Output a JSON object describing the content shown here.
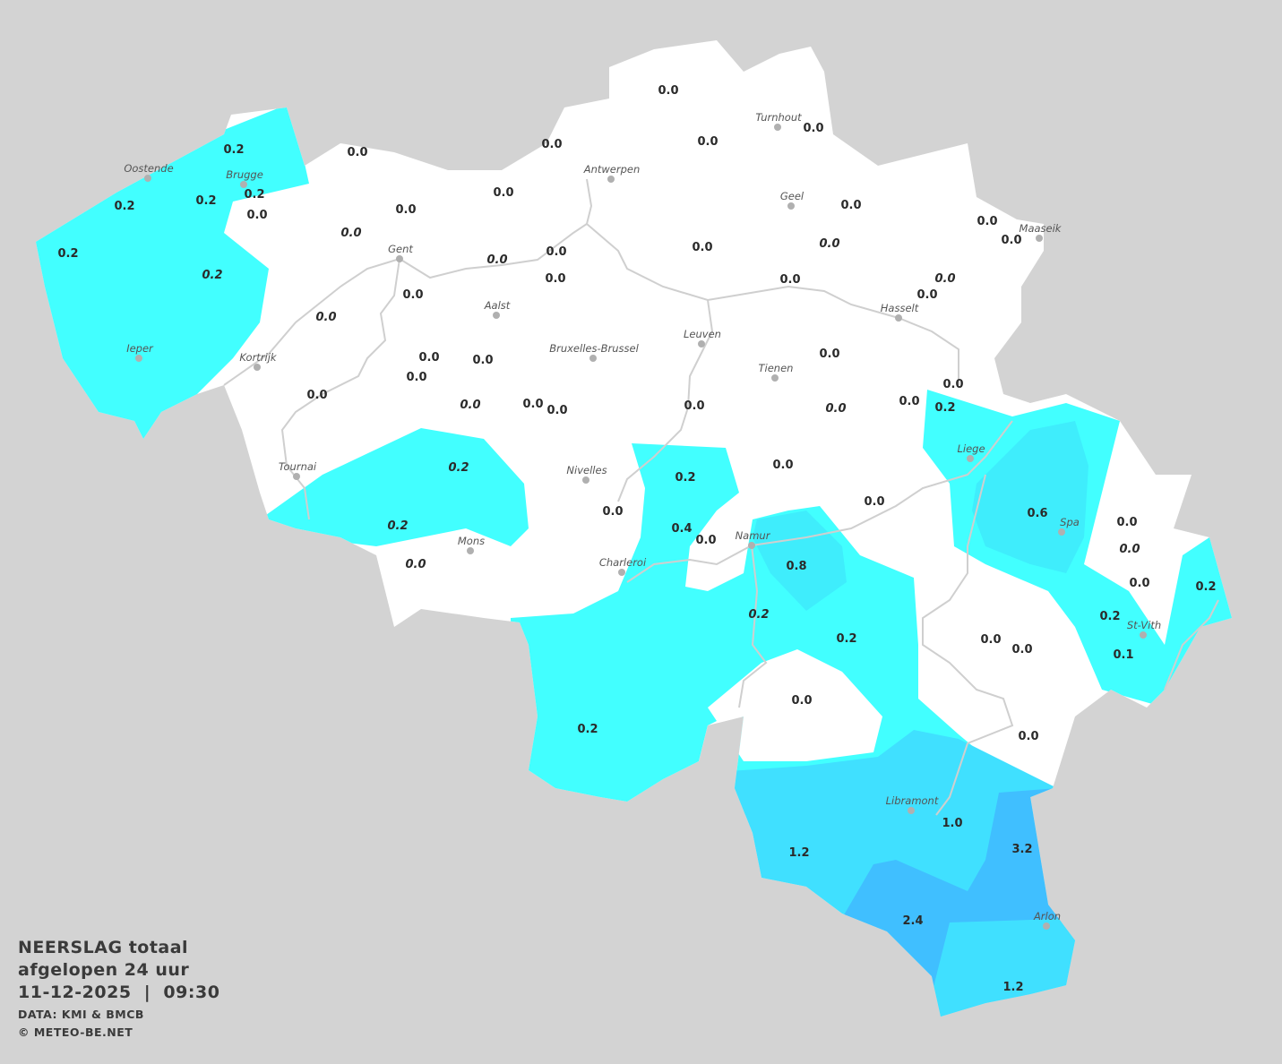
{
  "title": {
    "line1": "NEERSLAG totaal",
    "line2": "afgelopen 24 uur",
    "line3": "11-12-2025  |  09:30",
    "source": "DATA: KMI & BMCB",
    "copyright": "© METEO-BE.NET"
  },
  "colors": {
    "background": "#d3d3d3",
    "land_no_rain": "#ffffff",
    "rain_0_2": "#42ffff",
    "rain_0_6": "#3fedfc",
    "rain_1_0": "#40e0ff",
    "rain_2_4": "#40bfff",
    "river": "#cfcfcf",
    "city_dot": "#b0b0b0"
  },
  "cities": [
    "Oostende",
    "Brugge",
    "Antwerpen",
    "Turnhout",
    "Geel",
    "Maaseik",
    "Gent",
    "Aalst",
    "Bruxelles-Brussel",
    "Leuven",
    "Hasselt",
    "Tienen",
    "Kortrijk",
    "Ieper",
    "Tournai",
    "Nivelles",
    "Mons",
    "Charleroi",
    "Namur",
    "Liege",
    "Spa",
    "St-Vith",
    "Libramont",
    "Arlon"
  ],
  "stations": [
    {
      "v": "0.0",
      "i": false
    },
    {
      "v": "0.0",
      "i": false
    },
    {
      "v": "0.0",
      "i": false
    },
    {
      "v": "0.0",
      "i": false
    },
    {
      "v": "0.0",
      "i": false
    },
    {
      "v": "0.2",
      "i": false
    },
    {
      "v": "0.2",
      "i": false
    },
    {
      "v": "0.2",
      "i": false
    },
    {
      "v": "0.2",
      "i": false
    },
    {
      "v": "0.0",
      "i": false
    },
    {
      "v": "0.0",
      "i": false
    },
    {
      "v": "0.0",
      "i": false
    },
    {
      "v": "0.0",
      "i": true
    },
    {
      "v": "0.2",
      "i": false
    },
    {
      "v": "0.2",
      "i": true
    },
    {
      "v": "0.0",
      "i": true
    },
    {
      "v": "0.0",
      "i": false
    },
    {
      "v": "0.0",
      "i": false
    },
    {
      "v": "0.0",
      "i": false
    },
    {
      "v": "0.0",
      "i": true
    },
    {
      "v": "0.0",
      "i": false
    },
    {
      "v": "0.0",
      "i": false
    },
    {
      "v": "0.0",
      "i": false
    },
    {
      "v": "0.0",
      "i": false
    },
    {
      "v": "0.0",
      "i": true
    },
    {
      "v": "0.0",
      "i": false
    },
    {
      "v": "0.0",
      "i": false
    },
    {
      "v": "0.0",
      "i": false
    },
    {
      "v": "0.0",
      "i": false
    },
    {
      "v": "0.0",
      "i": true
    },
    {
      "v": "0.0",
      "i": false
    },
    {
      "v": "0.0",
      "i": false
    },
    {
      "v": "0.0",
      "i": false
    },
    {
      "v": "0.0",
      "i": true
    },
    {
      "v": "0.0",
      "i": false
    },
    {
      "v": "0.0",
      "i": false
    },
    {
      "v": "0.0",
      "i": false
    },
    {
      "v": "0.0",
      "i": true
    },
    {
      "v": "0.0",
      "i": false
    },
    {
      "v": "0.0",
      "i": false
    },
    {
      "v": "0.2",
      "i": false
    },
    {
      "v": "0.2",
      "i": true
    },
    {
      "v": "0.2",
      "i": false
    },
    {
      "v": "0.0",
      "i": false
    },
    {
      "v": "0.0",
      "i": false
    },
    {
      "v": "0.2",
      "i": true
    },
    {
      "v": "0.0",
      "i": false
    },
    {
      "v": "0.4",
      "i": false
    },
    {
      "v": "0.0",
      "i": false
    },
    {
      "v": "0.6",
      "i": false
    },
    {
      "v": "0.0",
      "i": false
    },
    {
      "v": "0.0",
      "i": true
    },
    {
      "v": "0.0",
      "i": true
    },
    {
      "v": "0.8",
      "i": false
    },
    {
      "v": "0.0",
      "i": false
    },
    {
      "v": "0.2",
      "i": false
    },
    {
      "v": "0.2",
      "i": true
    },
    {
      "v": "0.2",
      "i": false
    },
    {
      "v": "0.2",
      "i": false
    },
    {
      "v": "0.0",
      "i": false
    },
    {
      "v": "0.0",
      "i": false
    },
    {
      "v": "0.1",
      "i": false
    },
    {
      "v": "0.0",
      "i": false
    },
    {
      "v": "0.2",
      "i": false
    },
    {
      "v": "0.0",
      "i": false
    },
    {
      "v": "1.0",
      "i": false
    },
    {
      "v": "1.2",
      "i": false
    },
    {
      "v": "3.2",
      "i": false
    },
    {
      "v": "2.4",
      "i": false
    },
    {
      "v": "1.2",
      "i": false
    }
  ]
}
